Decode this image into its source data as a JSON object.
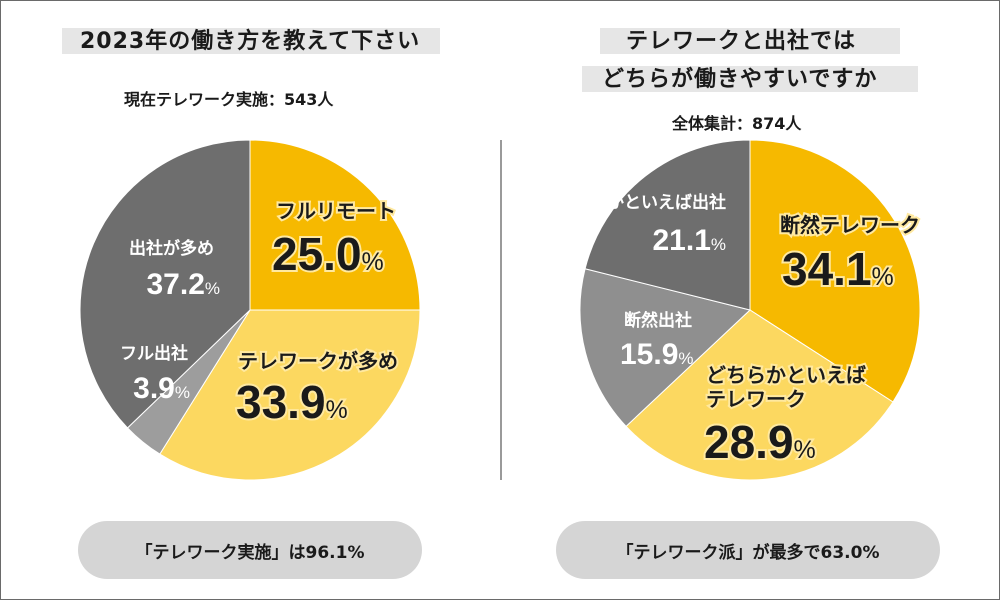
{
  "colors": {
    "accent_dark": "#f6b900",
    "accent_light": "#fcd860",
    "gray_dark": "#6e6e6e",
    "gray_mid": "#8f8f8f",
    "gray_light": "#9d9d9d"
  },
  "chart_data": [
    {
      "type": "pie",
      "title": "2023年の働き方を教えて下さい",
      "subtitle": "現在テレワーク実施：543人",
      "categories": [
        "フルリモート",
        "テレワークが多め",
        "フル出社",
        "出社が多め"
      ],
      "values": [
        25.0,
        33.9,
        3.9,
        37.2
      ],
      "value_labels": [
        "25.0",
        "33.9",
        "3.9",
        "37.2"
      ],
      "unit": "%",
      "summary": "「テレワーク実施」は96.1%"
    },
    {
      "type": "pie",
      "title_lines": [
        "テレワークと出社では",
        "どちらが働きやすいですか"
      ],
      "subtitle": "全体集計：874人",
      "categories": [
        "断然テレワーク",
        "どちらかといえばテレワーク",
        "断然出社",
        "どちらかといえば出社"
      ],
      "category_lines": [
        [
          "断然テレワーク"
        ],
        [
          "どちらかといえば",
          "テレワーク"
        ],
        [
          "断然出社"
        ],
        [
          "どちらかといえば出社"
        ]
      ],
      "values": [
        34.1,
        28.9,
        15.9,
        21.1
      ],
      "value_labels": [
        "34.1",
        "28.9",
        "15.9",
        "21.1"
      ],
      "unit": "%",
      "summary": "「テレワーク派」が最多で63.0%"
    }
  ]
}
